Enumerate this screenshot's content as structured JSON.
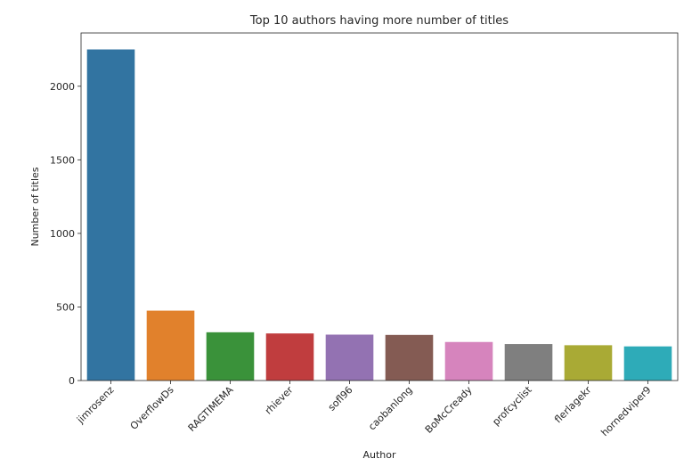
{
  "chart_data": {
    "type": "bar",
    "title": "Top 10 authors having more number of titles",
    "xlabel": "Author",
    "ylabel": "Number of titles",
    "categories": [
      "jimrosenz",
      "OverflowDs",
      "RAGTIMEMA",
      "rhiever",
      "sofl96",
      "caobanlong",
      "BoMcCready",
      "profcyclist",
      "flerlagekr",
      "hornedviper9"
    ],
    "values": [
      2250,
      475,
      328,
      320,
      312,
      310,
      262,
      248,
      240,
      232
    ],
    "ylim": [
      0,
      2362
    ],
    "yticks": [
      0,
      500,
      1000,
      1500,
      2000
    ],
    "colors": [
      "#3274a1",
      "#e1812c",
      "#3a923a",
      "#c03d3e",
      "#9372b2",
      "#845b53",
      "#d684bd",
      "#7f7f7f",
      "#a9aa35",
      "#2eabb8"
    ],
    "grid": false,
    "legend": "none"
  }
}
